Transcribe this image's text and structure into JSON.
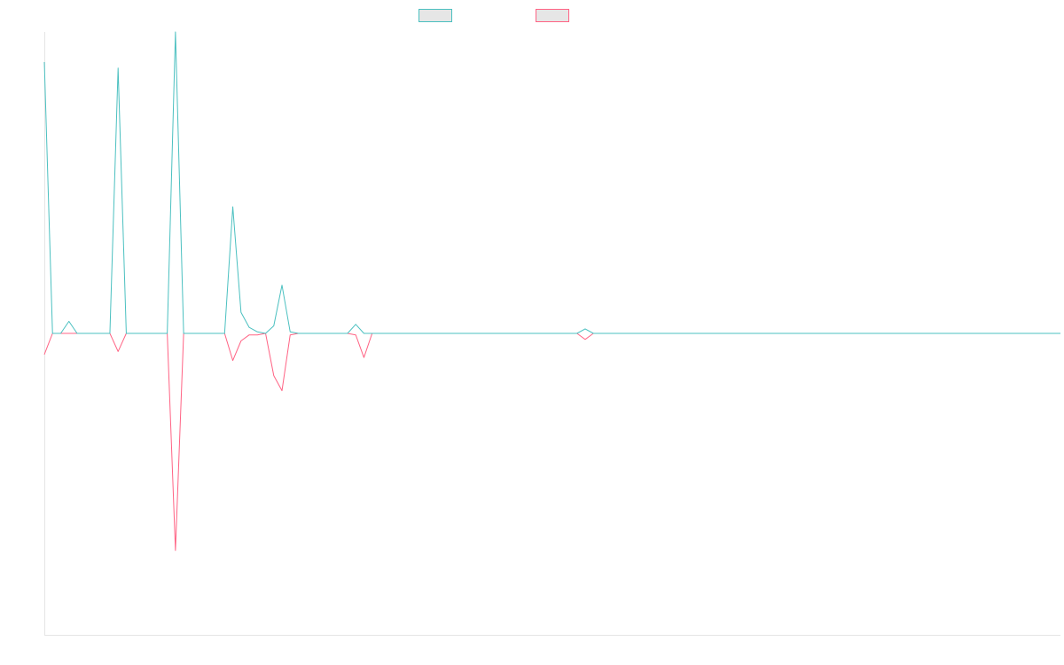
{
  "chart_data": {
    "type": "line",
    "title": "",
    "xlabel": "",
    "ylabel": "",
    "grid": false,
    "legend_position": "top-center",
    "ylim": [
      -10,
      10
    ],
    "x_count": 125,
    "series": [
      {
        "color": "#4bc0c0",
        "values": [
          9,
          0,
          0,
          0.4,
          0,
          0,
          0,
          0,
          0,
          8.8,
          0,
          0,
          0,
          0,
          0,
          0,
          10,
          0,
          0,
          0,
          0,
          0,
          0,
          4.2,
          0.7,
          0.2,
          0.05,
          0,
          0.25,
          1.6,
          0.05,
          0,
          0,
          0,
          0,
          0,
          0,
          0,
          0.3,
          0,
          0,
          0,
          0,
          0,
          0,
          0,
          0,
          0,
          0,
          0,
          0,
          0,
          0,
          0,
          0,
          0,
          0,
          0,
          0,
          0,
          0,
          0,
          0,
          0,
          0,
          0,
          0.15,
          0,
          0,
          0,
          0,
          0,
          0,
          0,
          0,
          0,
          0,
          0,
          0,
          0,
          0,
          0,
          0,
          0,
          0,
          0,
          0,
          0,
          0,
          0,
          0,
          0,
          0,
          0,
          0,
          0,
          0,
          0,
          0,
          0,
          0,
          0,
          0,
          0,
          0,
          0,
          0,
          0,
          0,
          0,
          0,
          0,
          0,
          0,
          0,
          0,
          0,
          0,
          0,
          0,
          0,
          0,
          0,
          0,
          0
        ]
      },
      {
        "color": "#ff6384",
        "values": [
          -0.7,
          0,
          0,
          0,
          0,
          0,
          0,
          0,
          0,
          -0.6,
          0,
          0,
          0,
          0,
          0,
          0,
          -7.2,
          0,
          0,
          0,
          0,
          0,
          0,
          -0.9,
          -0.25,
          -0.05,
          -0.05,
          0,
          -1.4,
          -1.9,
          -0.05,
          0,
          0,
          0,
          0,
          0,
          0,
          0,
          -0.05,
          -0.8,
          0,
          0,
          0,
          0,
          0,
          0,
          0,
          0,
          0,
          0,
          0,
          0,
          0,
          0,
          0,
          0,
          0,
          0,
          0,
          0,
          0,
          0,
          0,
          0,
          0,
          0,
          -0.2,
          0,
          0,
          0,
          0,
          0,
          0,
          0,
          0,
          0,
          0,
          0,
          0,
          0,
          0,
          0,
          0,
          0,
          0,
          0,
          0,
          0,
          0,
          0,
          0,
          0,
          0,
          0,
          0,
          0,
          0,
          0,
          0,
          0,
          0,
          0,
          0,
          0,
          0,
          0,
          0,
          0,
          0,
          0,
          0,
          0,
          0,
          0,
          0,
          0,
          0,
          0,
          0,
          0,
          0,
          0,
          0,
          0,
          0
        ]
      }
    ]
  }
}
